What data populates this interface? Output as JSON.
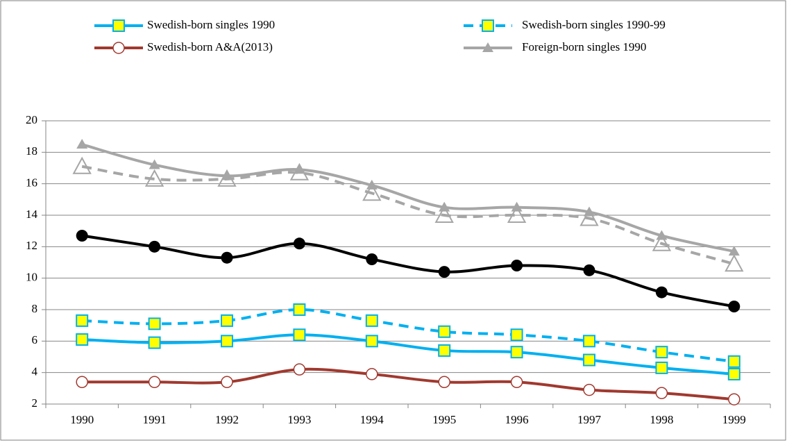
{
  "chart_data": {
    "type": "line",
    "categories": [
      "1990",
      "1991",
      "1992",
      "1993",
      "1994",
      "1995",
      "1996",
      "1997",
      "1998",
      "1999"
    ],
    "ylim": [
      2,
      20
    ],
    "yticks": [
      2,
      4,
      6,
      8,
      10,
      12,
      14,
      16,
      18,
      20
    ],
    "grid": true,
    "series": [
      {
        "name": "Swedish-born singles 1990",
        "color": "#00b0f0",
        "marker": "square",
        "dashed": false,
        "values": [
          6.1,
          5.9,
          6.0,
          6.4,
          6.0,
          5.4,
          5.3,
          4.8,
          4.3,
          3.9
        ]
      },
      {
        "name": "Swedish-born singles 1990-99",
        "color": "#00b0f0",
        "marker": "square",
        "dashed": true,
        "values": [
          7.3,
          7.1,
          7.3,
          8.0,
          7.3,
          6.6,
          6.4,
          6.0,
          5.3,
          4.7
        ]
      },
      {
        "name": "Swedish-born A&A(2013)",
        "color": "#a0392f",
        "marker": "hollow-circle",
        "dashed": false,
        "values": [
          3.4,
          3.4,
          3.4,
          4.2,
          3.9,
          3.4,
          3.4,
          2.9,
          2.7,
          2.3
        ]
      },
      {
        "name": "Foreign-born singles 1990",
        "color": "#a6a6a6",
        "marker": "triangle",
        "dashed": false,
        "values": [
          18.5,
          17.2,
          16.5,
          16.9,
          15.9,
          14.5,
          14.5,
          14.2,
          12.7,
          11.7
        ]
      },
      {
        "color": "#a6a6a6",
        "marker": "hollow-triangle",
        "dashed": true,
        "values": [
          17.1,
          16.3,
          16.3,
          16.7,
          15.4,
          14.0,
          14.0,
          13.8,
          12.2,
          10.9
        ]
      },
      {
        "color": "#000000",
        "marker": "circle",
        "dashed": false,
        "values": [
          12.7,
          12.0,
          11.3,
          12.2,
          11.2,
          10.4,
          10.8,
          10.5,
          9.1,
          8.2
        ]
      }
    ]
  }
}
